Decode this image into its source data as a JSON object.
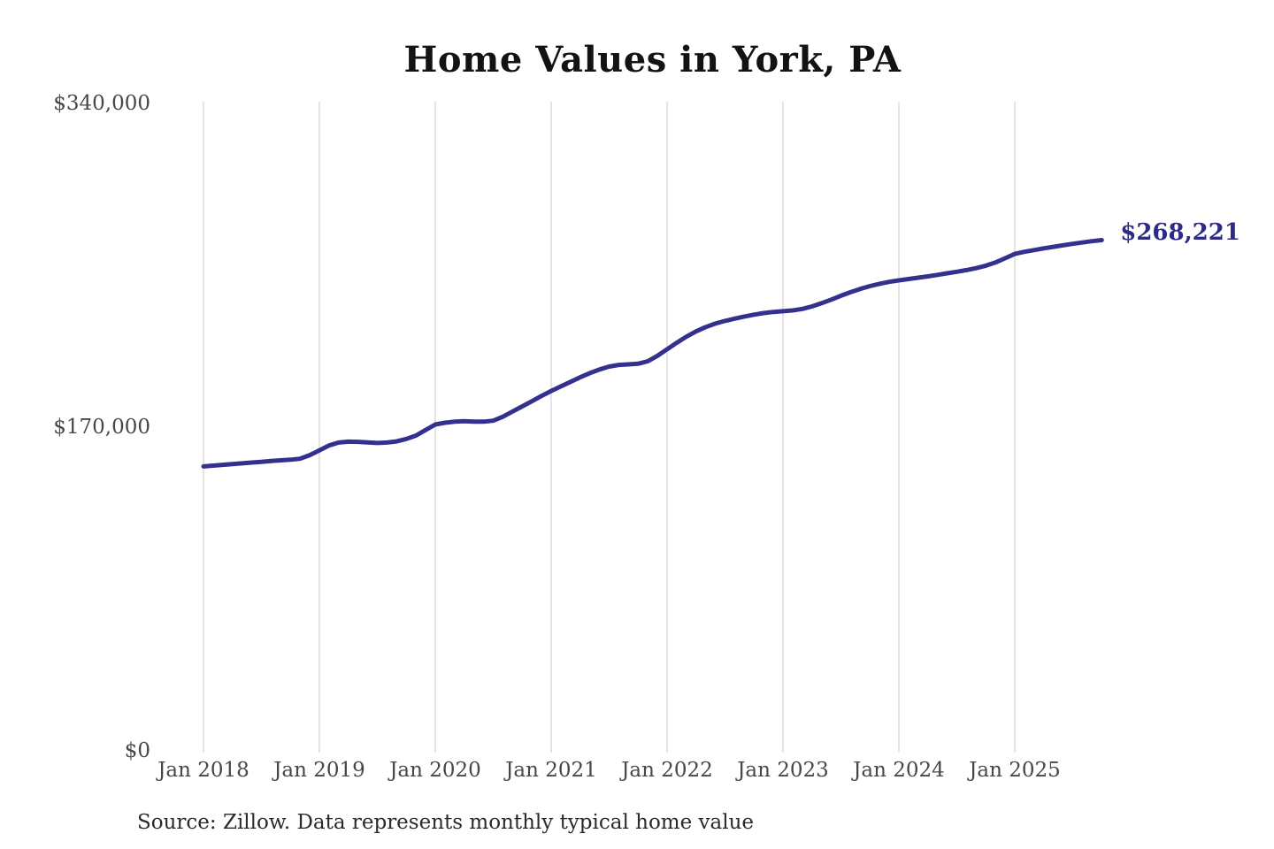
{
  "header": {
    "title": "Home Values in York, PA"
  },
  "y_axis": {
    "ticks": [
      {
        "label": "$340,000",
        "value": 340000
      },
      {
        "label": "$170,000",
        "value": 170000
      },
      {
        "label": "$0",
        "value": 0
      }
    ]
  },
  "x_axis": {
    "ticks": [
      {
        "label": "Jan 2018",
        "month_index": 0
      },
      {
        "label": "Jan 2019",
        "month_index": 12
      },
      {
        "label": "Jan 2020",
        "month_index": 24
      },
      {
        "label": "Jan 2021",
        "month_index": 36
      },
      {
        "label": "Jan 2022",
        "month_index": 48
      },
      {
        "label": "Jan 2023",
        "month_index": 60
      },
      {
        "label": "Jan 2024",
        "month_index": 72
      },
      {
        "label": "Jan 2025",
        "month_index": 84
      }
    ]
  },
  "footer": {
    "source_note": "Source: Zillow. Data represents monthly typical home value"
  },
  "colors": {
    "line": "#34308e",
    "latest_label": "#2d2b84",
    "gridline": "#c9c9c9",
    "axis_text": "#474747",
    "title_text": "#131313",
    "source_text": "#2a2a2a"
  },
  "chart_data": {
    "type": "line",
    "title": "Home Values in York, PA",
    "x_start": "Jan 2018",
    "x_end": "Oct 2025",
    "frequency": "monthly",
    "x_tick_labels": [
      "Jan 2018",
      "Jan 2019",
      "Jan 2020",
      "Jan 2021",
      "Jan 2022",
      "Jan 2023",
      "Jan 2024",
      "Jan 2025"
    ],
    "y_tick_labels": [
      "$0",
      "$170,000",
      "$340,000"
    ],
    "y_tick_values": [
      0,
      170000,
      340000
    ],
    "ylim": [
      0,
      340000
    ],
    "legend": "none",
    "gridlines": "vertical-only",
    "latest_value": 268221,
    "latest_value_label": "$268,221",
    "values": [
      149400,
      149800,
      150200,
      150600,
      151000,
      151400,
      151800,
      152200,
      152600,
      152900,
      153400,
      155300,
      157800,
      160400,
      161900,
      162400,
      162300,
      162000,
      161700,
      161900,
      162500,
      163800,
      165600,
      168500,
      171400,
      172300,
      172900,
      173100,
      172900,
      172900,
      173400,
      175500,
      178200,
      180900,
      183600,
      186400,
      189000,
      191400,
      193800,
      196200,
      198400,
      200300,
      201800,
      202700,
      203000,
      203300,
      204600,
      207500,
      210900,
      214300,
      217500,
      220300,
      222600,
      224400,
      225800,
      227000,
      228100,
      229100,
      229900,
      230500,
      230900,
      231300,
      232100,
      233400,
      235100,
      237000,
      239000,
      240900,
      242600,
      244100,
      245300,
      246300,
      247100,
      247800,
      248500,
      249200,
      250000,
      250800,
      251600,
      252500,
      253500,
      254800,
      256500,
      258700,
      261000,
      262100,
      263000,
      263900,
      264700,
      265500,
      266300,
      267000,
      267700,
      268221
    ]
  }
}
